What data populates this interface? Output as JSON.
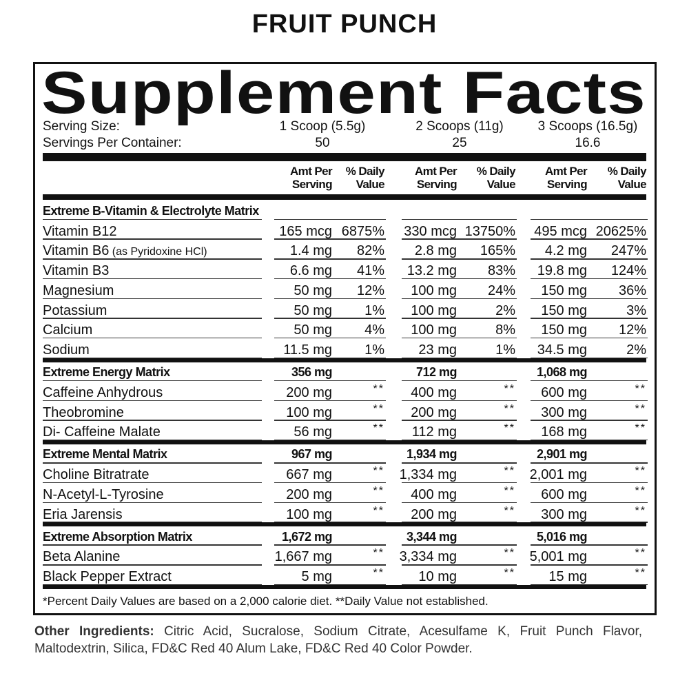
{
  "flavor": "FRUIT PUNCH",
  "title": "Supplement Facts",
  "serving_size": {
    "label": "Serving Size:",
    "values": [
      "1 Scoop (5.5g)",
      "2 Scoops (11g)",
      "3 Scoops (16.5g)"
    ]
  },
  "servings_per_container": {
    "label": "Servings Per Container:",
    "values": [
      "50",
      "25",
      "16.6"
    ]
  },
  "column_headers": [
    [
      "Amt Per",
      "Serving"
    ],
    [
      "% Daily",
      "Value"
    ],
    [
      "Amt Per",
      "Serving"
    ],
    [
      "% Daily",
      "Value"
    ],
    [
      "Amt Per",
      "Serving"
    ],
    [
      "% Daily",
      "Value"
    ]
  ],
  "sections": [
    {
      "name": "Extreme B-Vitamin & Electrolyte Matrix",
      "rows": [
        {
          "name": "Vitamin B12",
          "cells": [
            "165 mcg",
            "6875%",
            "330 mcg",
            "13750%",
            "495 mcg",
            "20625%"
          ]
        },
        {
          "name": "Vitamin B6",
          "note": "(as Pyridoxine HCl)",
          "cells": [
            "1.4 mg",
            "82%",
            "2.8 mg",
            "165%",
            "4.2 mg",
            "247%"
          ]
        },
        {
          "name": "Vitamin B3",
          "cells": [
            "6.6 mg",
            "41%",
            "13.2 mg",
            "83%",
            "19.8 mg",
            "124%"
          ]
        },
        {
          "name": "Magnesium",
          "cells": [
            "50 mg",
            "12%",
            "100 mg",
            "24%",
            "150 mg",
            "36%"
          ]
        },
        {
          "name": "Potassium",
          "cells": [
            "50 mg",
            "1%",
            "100 mg",
            "2%",
            "150 mg",
            "3%"
          ]
        },
        {
          "name": "Calcium",
          "cells": [
            "50 mg",
            "4%",
            "100 mg",
            "8%",
            "150 mg",
            "12%"
          ]
        },
        {
          "name": "Sodium",
          "cells": [
            "11.5 mg",
            "1%",
            "23 mg",
            "1%",
            "34.5 mg",
            "2%"
          ]
        }
      ]
    },
    {
      "name": "Extreme Energy Matrix",
      "totals": [
        "356 mg",
        "712 mg",
        "1,068 mg"
      ],
      "rows": [
        {
          "name": "Caffeine Anhydrous",
          "cells": [
            "200 mg",
            "**",
            "400 mg",
            "**",
            "600 mg",
            "**"
          ]
        },
        {
          "name": "Theobromine",
          "cells": [
            "100 mg",
            "**",
            "200 mg",
            "**",
            "300 mg",
            "**"
          ]
        },
        {
          "name": "Di- Caffeine Malate",
          "cells": [
            "56 mg",
            "**",
            "112 mg",
            "**",
            "168 mg",
            "**"
          ]
        }
      ]
    },
    {
      "name": "Extreme Mental Matrix",
      "totals": [
        "967 mg",
        "1,934 mg",
        "2,901 mg"
      ],
      "rows": [
        {
          "name": "Choline Bitratrate",
          "cells": [
            "667 mg",
            "**",
            "1,334 mg",
            "**",
            "2,001 mg",
            "**"
          ]
        },
        {
          "name": "N-Acetyl-L-Tyrosine",
          "cells": [
            "200 mg",
            "**",
            "400 mg",
            "**",
            "600 mg",
            "**"
          ]
        },
        {
          "name": "Eria Jarensis",
          "cells": [
            "100 mg",
            "**",
            "200 mg",
            "**",
            "300 mg",
            "**"
          ]
        }
      ]
    },
    {
      "name": "Extreme Absorption Matrix",
      "totals": [
        "1,672 mg",
        "3,344 mg",
        "5,016 mg"
      ],
      "rows": [
        {
          "name": "Beta Alanine",
          "cells": [
            "1,667 mg",
            "**",
            "3,334 mg",
            "**",
            "5,001 mg",
            "**"
          ]
        },
        {
          "name": "Black Pepper Extract",
          "cells": [
            "5 mg",
            "**",
            "10 mg",
            "**",
            "15 mg",
            "**"
          ]
        }
      ]
    }
  ],
  "footnote": "*Percent Daily Values are based on a 2,000 calorie diet. **Daily Value not established.",
  "other_ingredients": {
    "label": "Other Ingredients:",
    "text": "Citric Acid, Sucralose, Sodium Citrate, Acesulfame K, Fruit Punch Flavor, Maltodextrin, Silica, FD&C Red 40 Alum Lake, FD&C Red 40 Color Powder."
  }
}
